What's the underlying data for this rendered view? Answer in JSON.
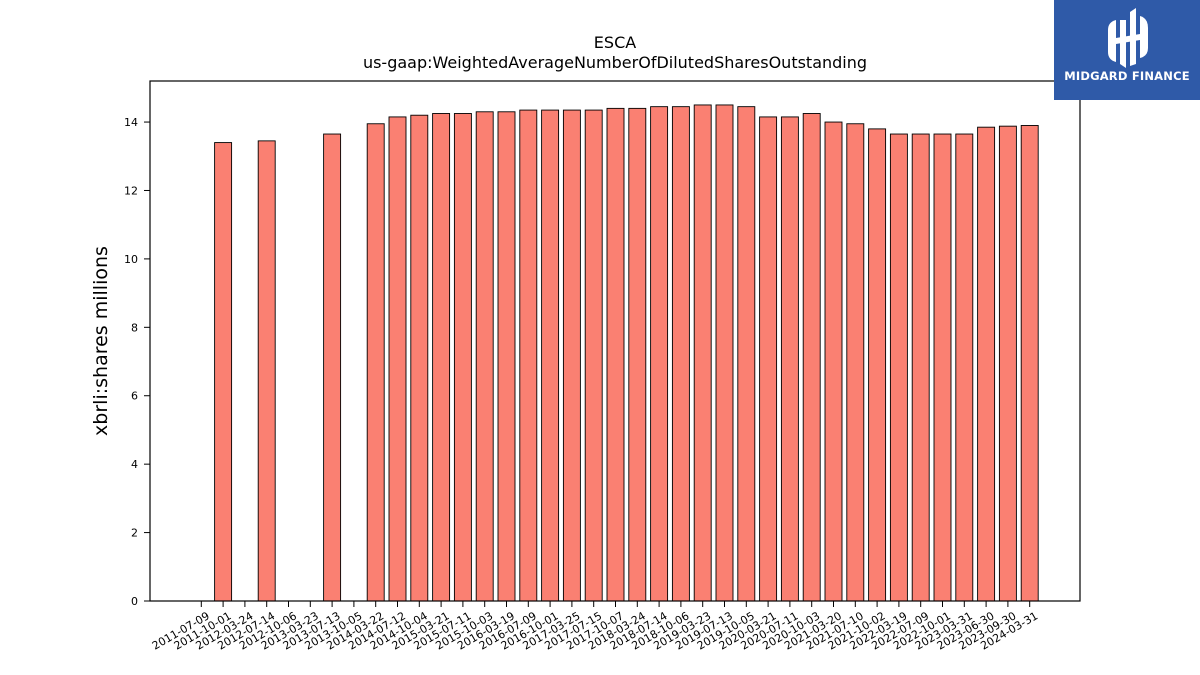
{
  "brand": {
    "name": "MIDGARD FINANCE",
    "color": "#2f5aa8"
  },
  "chart_data": {
    "type": "bar",
    "title": "ESCA",
    "subtitle": "us-gaap:WeightedAverageNumberOfDilutedSharesOutstanding",
    "ylabel": "xbrli:shares millions",
    "xlabel": "",
    "ylim": [
      0,
      15.2
    ],
    "yticks": [
      0,
      2,
      4,
      6,
      8,
      10,
      12,
      14
    ],
    "grid": false,
    "bar_color": "#fa8072",
    "categories": [
      "2011-07-09",
      "2011-10-01",
      "2012-03-24",
      "2012-07-14",
      "2012-10-06",
      "2013-03-23",
      "2013-07-13",
      "2013-10-05",
      "2014-03-22",
      "2014-07-12",
      "2014-10-04",
      "2015-03-21",
      "2015-07-11",
      "2015-10-03",
      "2016-03-19",
      "2016-07-09",
      "2016-10-01",
      "2017-03-25",
      "2017-07-15",
      "2017-10-07",
      "2018-03-24",
      "2018-07-14",
      "2018-10-06",
      "2019-03-23",
      "2019-07-13",
      "2019-10-05",
      "2020-03-21",
      "2020-07-11",
      "2020-10-03",
      "2021-03-20",
      "2021-07-10",
      "2021-10-02",
      "2022-03-19",
      "2022-07-09",
      "2022-10-01",
      "2023-03-31",
      "2023-06-30",
      "2023-09-30",
      "2024-03-31"
    ],
    "values": [
      0,
      13.4,
      0,
      13.45,
      0,
      0,
      13.65,
      0,
      13.95,
      14.15,
      14.2,
      14.25,
      14.25,
      14.3,
      14.3,
      14.35,
      14.35,
      14.35,
      14.35,
      14.4,
      14.4,
      14.45,
      14.45,
      14.5,
      14.5,
      14.45,
      14.15,
      14.15,
      14.25,
      14.0,
      13.95,
      13.8,
      13.65,
      13.65,
      13.65,
      13.65,
      13.85,
      13.88,
      13.9
    ]
  }
}
